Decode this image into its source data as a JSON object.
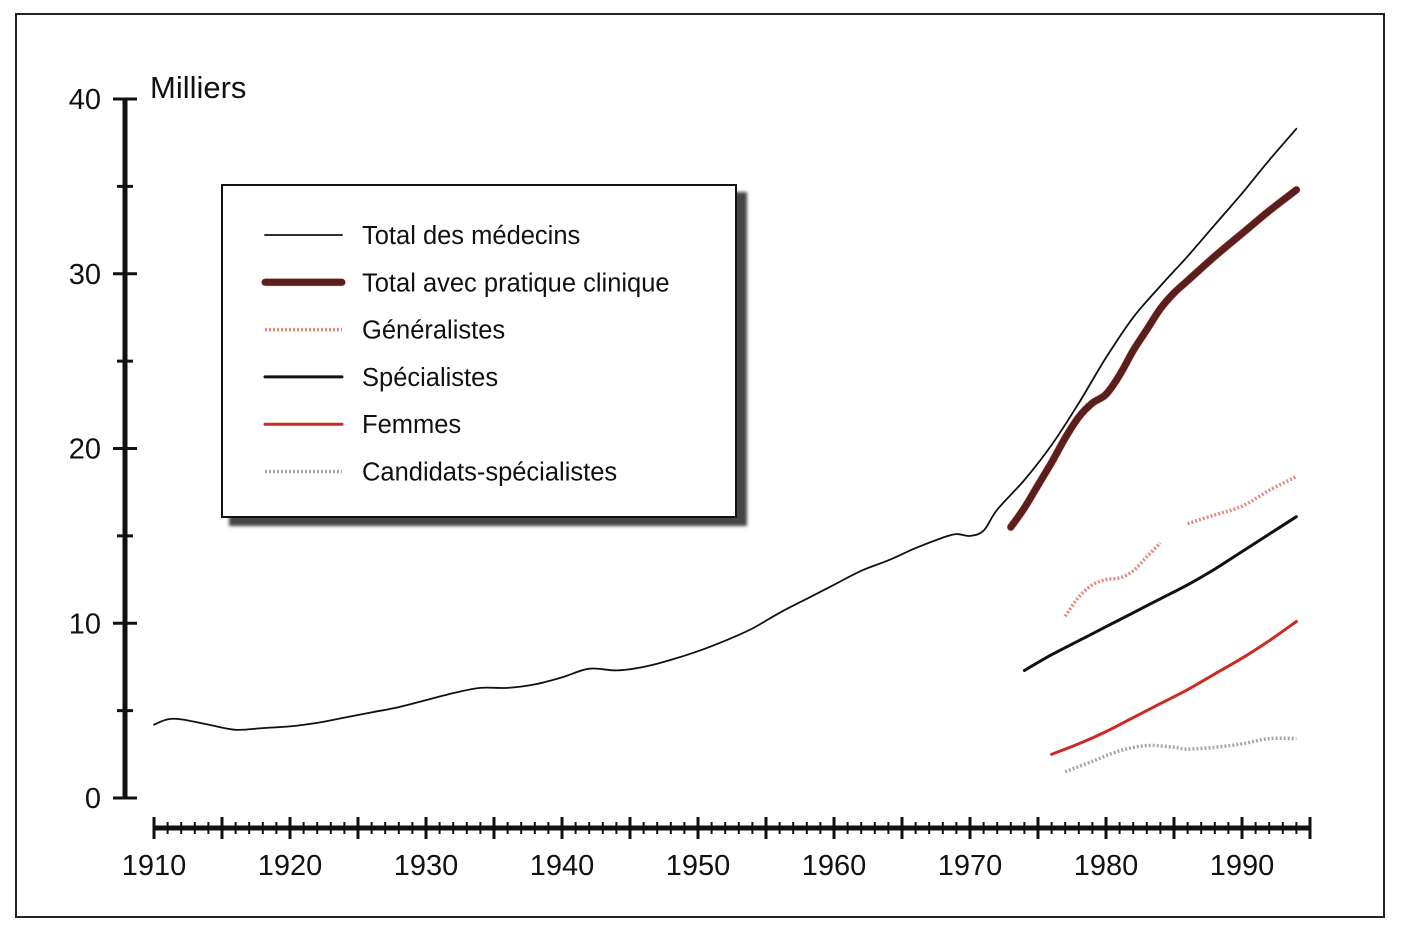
{
  "chart_data": {
    "type": "line",
    "title": "",
    "ylabel": "Milliers",
    "xlabel": "",
    "xlim": [
      1910,
      1995
    ],
    "ylim": [
      0,
      40
    ],
    "x_ticks": [
      1910,
      1920,
      1930,
      1940,
      1950,
      1960,
      1970,
      1980,
      1990
    ],
    "y_ticks": [
      0,
      10,
      20,
      30,
      40
    ],
    "legend_position": "top-left",
    "grid": false,
    "series": [
      {
        "name": "Total des médecins",
        "color": "#111111",
        "style": "thin",
        "segments": [
          [
            [
              1910,
              4.2
            ],
            [
              1911,
              4.5
            ],
            [
              1912,
              4.5
            ],
            [
              1914,
              4.2
            ],
            [
              1916,
              3.9
            ],
            [
              1918,
              4.0
            ],
            [
              1920,
              4.1
            ],
            [
              1922,
              4.3
            ],
            [
              1924,
              4.6
            ],
            [
              1926,
              4.9
            ],
            [
              1928,
              5.2
            ],
            [
              1930,
              5.6
            ],
            [
              1932,
              6.0
            ],
            [
              1934,
              6.3
            ],
            [
              1936,
              6.3
            ],
            [
              1938,
              6.5
            ],
            [
              1940,
              6.9
            ],
            [
              1942,
              7.4
            ],
            [
              1944,
              7.3
            ],
            [
              1946,
              7.5
            ],
            [
              1948,
              7.9
            ],
            [
              1950,
              8.4
            ],
            [
              1952,
              9.0
            ],
            [
              1954,
              9.7
            ],
            [
              1956,
              10.6
            ],
            [
              1958,
              11.4
            ],
            [
              1960,
              12.2
            ],
            [
              1962,
              13.0
            ],
            [
              1964,
              13.6
            ],
            [
              1966,
              14.3
            ],
            [
              1968,
              14.9
            ],
            [
              1969,
              15.1
            ],
            [
              1970,
              15.0
            ],
            [
              1971,
              15.3
            ],
            [
              1972,
              16.5
            ],
            [
              1974,
              18.2
            ],
            [
              1976,
              20.2
            ],
            [
              1978,
              22.6
            ],
            [
              1980,
              25.2
            ],
            [
              1982,
              27.5
            ],
            [
              1984,
              29.3
            ],
            [
              1986,
              31.0
            ],
            [
              1988,
              32.8
            ],
            [
              1990,
              34.6
            ],
            [
              1992,
              36.5
            ],
            [
              1994,
              38.3
            ]
          ]
        ]
      },
      {
        "name": "Total avec pratique clinique",
        "color": "#5a1f1c",
        "style": "thick",
        "segments": [
          [
            [
              1973,
              15.5
            ],
            [
              1974,
              16.6
            ],
            [
              1975,
              17.9
            ],
            [
              1976,
              19.2
            ],
            [
              1977,
              20.6
            ],
            [
              1978,
              21.8
            ],
            [
              1979,
              22.6
            ],
            [
              1980,
              23.1
            ],
            [
              1981,
              24.2
            ],
            [
              1982,
              25.6
            ],
            [
              1983,
              26.8
            ],
            [
              1984,
              28.0
            ],
            [
              1985,
              28.9
            ],
            [
              1986,
              29.6
            ],
            [
              1988,
              31.0
            ],
            [
              1990,
              32.3
            ],
            [
              1992,
              33.6
            ],
            [
              1994,
              34.8
            ]
          ]
        ]
      },
      {
        "name": "Généralistes",
        "color": "#e88a80",
        "style": "dotted",
        "segments": [
          [
            [
              1977,
              10.4
            ],
            [
              1978,
              11.5
            ],
            [
              1979,
              12.2
            ],
            [
              1980,
              12.5
            ],
            [
              1981,
              12.6
            ],
            [
              1982,
              13.0
            ],
            [
              1983,
              13.8
            ],
            [
              1984,
              14.6
            ]
          ],
          [
            [
              1986,
              15.7
            ],
            [
              1988,
              16.2
            ],
            [
              1990,
              16.7
            ],
            [
              1992,
              17.6
            ],
            [
              1994,
              18.4
            ]
          ]
        ]
      },
      {
        "name": "Spécialistes",
        "color": "#111111",
        "style": "medium",
        "segments": [
          [
            [
              1974,
              7.3
            ],
            [
              1976,
              8.2
            ],
            [
              1978,
              9.0
            ],
            [
              1980,
              9.8
            ],
            [
              1982,
              10.6
            ],
            [
              1984,
              11.4
            ],
            [
              1986,
              12.2
            ],
            [
              1988,
              13.1
            ],
            [
              1990,
              14.1
            ],
            [
              1992,
              15.1
            ],
            [
              1994,
              16.1
            ]
          ]
        ]
      },
      {
        "name": "Femmes",
        "color": "#cc2a22",
        "style": "medium",
        "segments": [
          [
            [
              1976,
              2.5
            ],
            [
              1978,
              3.1
            ],
            [
              1980,
              3.8
            ],
            [
              1982,
              4.6
            ],
            [
              1984,
              5.4
            ],
            [
              1986,
              6.2
            ],
            [
              1988,
              7.1
            ],
            [
              1990,
              8.0
            ],
            [
              1992,
              9.0
            ],
            [
              1994,
              10.1
            ]
          ]
        ]
      },
      {
        "name": "Candidats-spécialistes",
        "color": "#a8a8a8",
        "style": "dotted",
        "segments": [
          [
            [
              1977,
              1.5
            ],
            [
              1979,
              2.1
            ],
            [
              1981,
              2.7
            ],
            [
              1983,
              3.0
            ],
            [
              1985,
              2.9
            ],
            [
              1986,
              2.8
            ],
            [
              1988,
              2.9
            ],
            [
              1990,
              3.1
            ],
            [
              1992,
              3.4
            ],
            [
              1994,
              3.4
            ]
          ]
        ]
      }
    ]
  }
}
